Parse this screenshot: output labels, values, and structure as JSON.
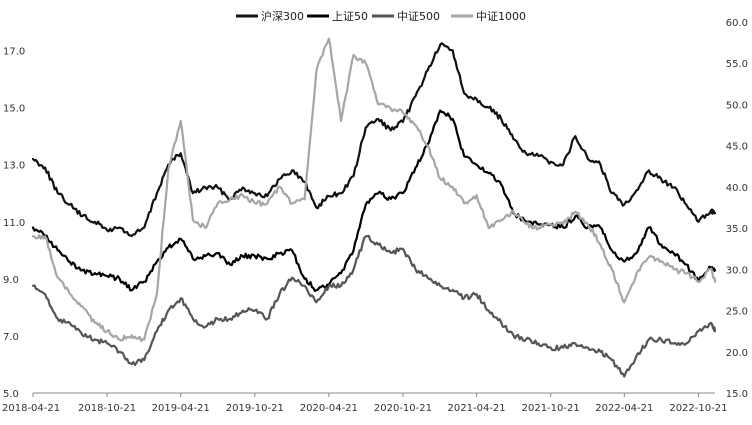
{
  "chart_data": {
    "type": "line",
    "title": "",
    "xlabel": "",
    "ylabel_left": "",
    "ylabel_right": "",
    "x_ticks": [
      "2018-04-21",
      "2018-10-21",
      "2019-04-21",
      "2019-10-21",
      "2020-04-21",
      "2020-10-21",
      "2021-04-21",
      "2021-10-21",
      "2022-04-21",
      "2022-10-21"
    ],
    "x_range": [
      "2018-04-21",
      "2022-12-01"
    ],
    "y_left_range": [
      5.0,
      18.0
    ],
    "y_left_ticks": [
      "5.0",
      "7.0",
      "9.0",
      "11.0",
      "13.0",
      "15.0",
      "17.0"
    ],
    "y_right_range": [
      15.0,
      60.0
    ],
    "y_right_ticks": [
      "15.0",
      "20.0",
      "25.0",
      "30.0",
      "35.0",
      "40.0",
      "45.0",
      "50.0",
      "55.0",
      "60.0"
    ],
    "grid": false,
    "legend_position": "top",
    "series": [
      {
        "name": "沪深300",
        "axis": "left",
        "color": "#111111",
        "points": [
          [
            "2018-04-21",
            13.2
          ],
          [
            "2018-05-21",
            12.9
          ],
          [
            "2018-06-21",
            12.0
          ],
          [
            "2018-07-21",
            11.6
          ],
          [
            "2018-08-21",
            11.2
          ],
          [
            "2018-09-21",
            11.0
          ],
          [
            "2018-10-21",
            10.7
          ],
          [
            "2018-11-21",
            10.8
          ],
          [
            "2018-12-21",
            10.5
          ],
          [
            "2019-01-21",
            10.8
          ],
          [
            "2019-02-21",
            12.0
          ],
          [
            "2019-03-21",
            13.0
          ],
          [
            "2019-04-21",
            13.4
          ],
          [
            "2019-05-21",
            12.0
          ],
          [
            "2019-06-21",
            12.2
          ],
          [
            "2019-07-21",
            12.2
          ],
          [
            "2019-08-21",
            11.8
          ],
          [
            "2019-09-21",
            12.2
          ],
          [
            "2019-10-21",
            12.0
          ],
          [
            "2019-11-21",
            11.9
          ],
          [
            "2019-12-21",
            12.5
          ],
          [
            "2020-01-21",
            12.8
          ],
          [
            "2020-02-21",
            12.4
          ],
          [
            "2020-03-21",
            11.5
          ],
          [
            "2020-04-21",
            11.9
          ],
          [
            "2020-05-21",
            12.0
          ],
          [
            "2020-06-21",
            12.6
          ],
          [
            "2020-07-21",
            14.3
          ],
          [
            "2020-08-21",
            14.6
          ],
          [
            "2020-09-21",
            14.2
          ],
          [
            "2020-10-21",
            14.5
          ],
          [
            "2020-11-21",
            15.4
          ],
          [
            "2020-12-21",
            16.3
          ],
          [
            "2021-01-21",
            17.2
          ],
          [
            "2021-02-21",
            17.0
          ],
          [
            "2021-03-21",
            15.5
          ],
          [
            "2021-04-21",
            15.3
          ],
          [
            "2021-05-21",
            15.0
          ],
          [
            "2021-06-21",
            14.6
          ],
          [
            "2021-07-21",
            13.9
          ],
          [
            "2021-08-21",
            13.4
          ],
          [
            "2021-09-21",
            13.3
          ],
          [
            "2021-10-21",
            13.1
          ],
          [
            "2021-11-21",
            13.0
          ],
          [
            "2021-12-21",
            14.0
          ],
          [
            "2022-01-21",
            13.2
          ],
          [
            "2022-02-21",
            13.0
          ],
          [
            "2022-03-21",
            12.0
          ],
          [
            "2022-04-21",
            11.6
          ],
          [
            "2022-05-21",
            12.1
          ],
          [
            "2022-06-21",
            12.8
          ],
          [
            "2022-07-21",
            12.5
          ],
          [
            "2022-08-21",
            12.2
          ],
          [
            "2022-09-21",
            11.6
          ],
          [
            "2022-10-21",
            11.0
          ],
          [
            "2022-11-21",
            11.4
          ],
          [
            "2022-12-01",
            11.3
          ]
        ]
      },
      {
        "name": "上证50",
        "axis": "left",
        "color": "#000000",
        "points": [
          [
            "2018-04-21",
            10.8
          ],
          [
            "2018-05-21",
            10.5
          ],
          [
            "2018-06-21",
            10.0
          ],
          [
            "2018-07-21",
            9.6
          ],
          [
            "2018-08-21",
            9.3
          ],
          [
            "2018-09-21",
            9.2
          ],
          [
            "2018-10-21",
            9.1
          ],
          [
            "2018-11-21",
            9.0
          ],
          [
            "2018-12-21",
            8.6
          ],
          [
            "2019-01-21",
            8.9
          ],
          [
            "2019-02-21",
            9.6
          ],
          [
            "2019-03-21",
            10.1
          ],
          [
            "2019-04-21",
            10.4
          ],
          [
            "2019-05-21",
            9.7
          ],
          [
            "2019-06-21",
            9.8
          ],
          [
            "2019-07-21",
            9.9
          ],
          [
            "2019-08-21",
            9.5
          ],
          [
            "2019-09-21",
            9.8
          ],
          [
            "2019-10-21",
            9.8
          ],
          [
            "2019-11-21",
            9.7
          ],
          [
            "2019-12-21",
            9.9
          ],
          [
            "2020-01-21",
            10.0
          ],
          [
            "2020-02-21",
            9.0
          ],
          [
            "2020-03-21",
            8.6
          ],
          [
            "2020-04-21",
            8.8
          ],
          [
            "2020-05-21",
            9.2
          ],
          [
            "2020-06-21",
            10.0
          ],
          [
            "2020-07-21",
            11.6
          ],
          [
            "2020-08-21",
            12.0
          ],
          [
            "2020-09-21",
            11.8
          ],
          [
            "2020-10-21",
            12.0
          ],
          [
            "2020-11-21",
            12.9
          ],
          [
            "2020-12-21",
            13.7
          ],
          [
            "2021-01-21",
            14.9
          ],
          [
            "2021-02-21",
            14.6
          ],
          [
            "2021-03-21",
            13.3
          ],
          [
            "2021-04-21",
            13.0
          ],
          [
            "2021-05-21",
            12.7
          ],
          [
            "2021-06-21",
            12.3
          ],
          [
            "2021-07-21",
            11.3
          ],
          [
            "2021-08-21",
            11.0
          ],
          [
            "2021-09-21",
            10.9
          ],
          [
            "2021-10-21",
            10.9
          ],
          [
            "2021-11-21",
            10.8
          ],
          [
            "2021-12-21",
            11.2
          ],
          [
            "2022-01-21",
            10.8
          ],
          [
            "2022-02-21",
            10.8
          ],
          [
            "2022-03-21",
            10.0
          ],
          [
            "2022-04-21",
            9.6
          ],
          [
            "2022-05-21",
            9.9
          ],
          [
            "2022-06-21",
            10.8
          ],
          [
            "2022-07-21",
            10.2
          ],
          [
            "2022-08-21",
            9.9
          ],
          [
            "2022-09-21",
            9.5
          ],
          [
            "2022-10-21",
            8.9
          ],
          [
            "2022-11-21",
            9.4
          ],
          [
            "2022-12-01",
            9.3
          ]
        ]
      },
      {
        "name": "中证500",
        "axis": "right",
        "color": "#555555",
        "points": [
          [
            "2018-04-21",
            28.0
          ],
          [
            "2018-05-21",
            27.0
          ],
          [
            "2018-06-21",
            24.0
          ],
          [
            "2018-07-21",
            23.5
          ],
          [
            "2018-08-21",
            22.0
          ],
          [
            "2018-09-21",
            21.5
          ],
          [
            "2018-10-21",
            21.0
          ],
          [
            "2018-11-21",
            20.0
          ],
          [
            "2018-12-21",
            18.5
          ],
          [
            "2019-01-21",
            19.0
          ],
          [
            "2019-02-21",
            22.5
          ],
          [
            "2019-03-21",
            25.0
          ],
          [
            "2019-04-21",
            26.5
          ],
          [
            "2019-05-21",
            24.0
          ],
          [
            "2019-06-21",
            23.0
          ],
          [
            "2019-07-21",
            24.0
          ],
          [
            "2019-08-21",
            24.0
          ],
          [
            "2019-09-21",
            25.0
          ],
          [
            "2019-10-21",
            25.0
          ],
          [
            "2019-11-21",
            24.0
          ],
          [
            "2019-12-21",
            27.0
          ],
          [
            "2020-01-21",
            29.0
          ],
          [
            "2020-02-21",
            28.0
          ],
          [
            "2020-03-21",
            26.0
          ],
          [
            "2020-04-21",
            28.0
          ],
          [
            "2020-05-21",
            28.0
          ],
          [
            "2020-06-21",
            30.0
          ],
          [
            "2020-07-21",
            34.0
          ],
          [
            "2020-08-21",
            33.0
          ],
          [
            "2020-09-21",
            32.0
          ],
          [
            "2020-10-21",
            32.5
          ],
          [
            "2020-11-21",
            30.0
          ],
          [
            "2020-12-21",
            29.0
          ],
          [
            "2021-01-21",
            28.0
          ],
          [
            "2021-02-21",
            27.5
          ],
          [
            "2021-03-21",
            26.5
          ],
          [
            "2021-04-21",
            27.0
          ],
          [
            "2021-05-21",
            25.0
          ],
          [
            "2021-06-21",
            23.5
          ],
          [
            "2021-07-21",
            22.0
          ],
          [
            "2021-08-21",
            21.5
          ],
          [
            "2021-09-21",
            21.0
          ],
          [
            "2021-10-21",
            20.5
          ],
          [
            "2021-11-21",
            20.5
          ],
          [
            "2021-12-21",
            21.0
          ],
          [
            "2022-01-21",
            20.5
          ],
          [
            "2022-02-21",
            20.0
          ],
          [
            "2022-03-21",
            19.0
          ],
          [
            "2022-04-21",
            17.0
          ],
          [
            "2022-05-21",
            19.5
          ],
          [
            "2022-06-21",
            21.5
          ],
          [
            "2022-07-21",
            21.5
          ],
          [
            "2022-08-21",
            21.0
          ],
          [
            "2022-09-21",
            21.0
          ],
          [
            "2022-10-21",
            22.5
          ],
          [
            "2022-11-21",
            23.5
          ],
          [
            "2022-12-01",
            22.5
          ]
        ]
      },
      {
        "name": "中证1000",
        "axis": "right",
        "color": "#a6a6a6",
        "points": [
          [
            "2018-04-21",
            34.0
          ],
          [
            "2018-05-21",
            34.0
          ],
          [
            "2018-06-21",
            29.0
          ],
          [
            "2018-07-21",
            27.0
          ],
          [
            "2018-08-21",
            25.5
          ],
          [
            "2018-09-21",
            23.5
          ],
          [
            "2018-10-21",
            22.5
          ],
          [
            "2018-11-21",
            21.5
          ],
          [
            "2018-12-21",
            22.0
          ],
          [
            "2019-01-21",
            21.5
          ],
          [
            "2019-02-21",
            27.0
          ],
          [
            "2019-03-21",
            42.0
          ],
          [
            "2019-04-21",
            48.0
          ],
          [
            "2019-05-21",
            36.0
          ],
          [
            "2019-06-21",
            35.0
          ],
          [
            "2019-07-21",
            38.0
          ],
          [
            "2019-08-21",
            38.5
          ],
          [
            "2019-09-21",
            39.0
          ],
          [
            "2019-10-21",
            38.0
          ],
          [
            "2019-11-21",
            38.0
          ],
          [
            "2019-12-21",
            40.0
          ],
          [
            "2020-01-21",
            38.0
          ],
          [
            "2020-02-21",
            38.5
          ],
          [
            "2020-03-21",
            54.0
          ],
          [
            "2020-04-21",
            58.0
          ],
          [
            "2020-05-21",
            48.0
          ],
          [
            "2020-06-21",
            56.0
          ],
          [
            "2020-07-21",
            55.0
          ],
          [
            "2020-08-21",
            50.0
          ],
          [
            "2020-09-21",
            49.5
          ],
          [
            "2020-10-21",
            49.0
          ],
          [
            "2020-11-21",
            47.5
          ],
          [
            "2020-12-21",
            45.0
          ],
          [
            "2021-01-21",
            41.0
          ],
          [
            "2021-02-21",
            40.0
          ],
          [
            "2021-03-21",
            38.0
          ],
          [
            "2021-04-21",
            39.0
          ],
          [
            "2021-05-21",
            35.0
          ],
          [
            "2021-06-21",
            36.0
          ],
          [
            "2021-07-21",
            37.0
          ],
          [
            "2021-08-21",
            35.5
          ],
          [
            "2021-09-21",
            35.0
          ],
          [
            "2021-10-21",
            35.5
          ],
          [
            "2021-11-21",
            35.5
          ],
          [
            "2021-12-21",
            37.0
          ],
          [
            "2022-01-21",
            35.5
          ],
          [
            "2022-02-21",
            33.0
          ],
          [
            "2022-03-21",
            30.0
          ],
          [
            "2022-04-21",
            26.0
          ],
          [
            "2022-05-21",
            29.5
          ],
          [
            "2022-06-21",
            31.5
          ],
          [
            "2022-07-21",
            31.0
          ],
          [
            "2022-08-21",
            30.0
          ],
          [
            "2022-09-21",
            29.5
          ],
          [
            "2022-10-21",
            28.5
          ],
          [
            "2022-11-21",
            30.0
          ],
          [
            "2022-12-01",
            28.5
          ]
        ]
      }
    ]
  }
}
